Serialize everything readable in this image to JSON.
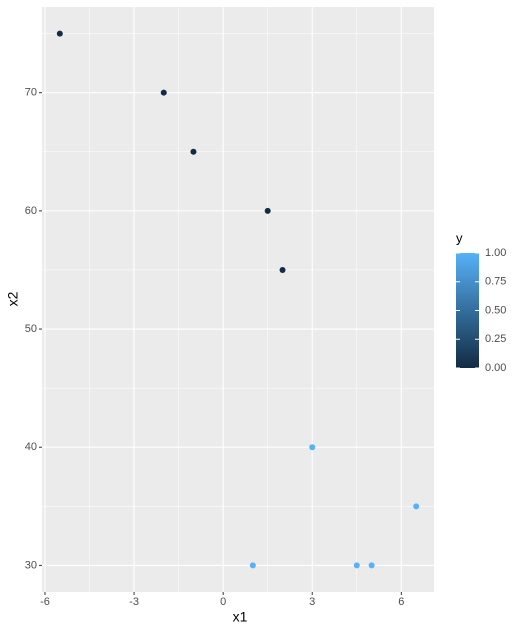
{
  "chart_data": {
    "type": "scatter",
    "x_label": "x1",
    "y_label": "x2",
    "x": [
      -5.5,
      -2,
      -1,
      1.5,
      2,
      3,
      6.5,
      1,
      4.5,
      5
    ],
    "y": [
      75,
      70,
      65,
      60,
      55,
      40,
      35,
      30,
      30,
      30
    ],
    "color_values": [
      0,
      0,
      0,
      0,
      0,
      1,
      1,
      1,
      1,
      1
    ],
    "xlim": [
      -6.1,
      7.1
    ],
    "xticks": [
      -6,
      -3,
      0,
      3,
      6
    ],
    "ylim": [
      27.75,
      77.25
    ],
    "yticks": [
      30,
      40,
      50,
      60,
      70
    ],
    "grid": true,
    "legend": {
      "title": "y",
      "position": "right",
      "colors": [
        "#132B43",
        "#56B1F7"
      ],
      "clim": [
        0,
        1
      ],
      "ticks": [
        {
          "value": 0,
          "label": "0.00"
        },
        {
          "value": 0.25,
          "label": "0.25"
        },
        {
          "value": 0.5,
          "label": "0.50"
        },
        {
          "value": 0.75,
          "label": "0.75"
        },
        {
          "value": 1,
          "label": "1.00"
        }
      ]
    }
  }
}
